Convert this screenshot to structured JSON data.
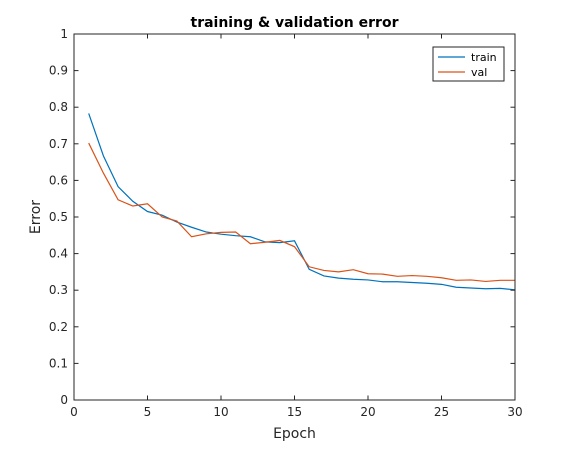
{
  "chart_data": {
    "type": "line",
    "title": "training & validation error",
    "xlabel": "Epoch",
    "ylabel": "Error",
    "xlim": [
      0,
      30
    ],
    "ylim": [
      0,
      1
    ],
    "xticks": [
      0,
      5,
      10,
      15,
      20,
      25,
      30
    ],
    "yticks": [
      0,
      0.1,
      0.2,
      0.3,
      0.4,
      0.5,
      0.6,
      0.7,
      0.8,
      0.9,
      1
    ],
    "xtick_labels": [
      "0",
      "5",
      "10",
      "15",
      "20",
      "25",
      "30"
    ],
    "ytick_labels": [
      "0",
      "0.1",
      "0.2",
      "0.3",
      "0.4",
      "0.5",
      "0.6",
      "0.7",
      "0.8",
      "0.9",
      "1"
    ],
    "grid": false,
    "legend_position": "top-right",
    "x": [
      1,
      2,
      3,
      4,
      5,
      6,
      7,
      8,
      9,
      10,
      11,
      12,
      13,
      14,
      15,
      16,
      17,
      18,
      19,
      20,
      21,
      22,
      23,
      24,
      25,
      26,
      27,
      28,
      29,
      30
    ],
    "series": [
      {
        "name": "train",
        "color": "#0072BD",
        "values": [
          0.783,
          0.667,
          0.583,
          0.543,
          0.515,
          0.505,
          0.486,
          0.472,
          0.459,
          0.453,
          0.449,
          0.446,
          0.432,
          0.43,
          0.435,
          0.357,
          0.339,
          0.333,
          0.33,
          0.328,
          0.323,
          0.323,
          0.321,
          0.319,
          0.316,
          0.308,
          0.306,
          0.304,
          0.305,
          0.301
        ]
      },
      {
        "name": "val",
        "color": "#D95319",
        "values": [
          0.702,
          0.62,
          0.547,
          0.53,
          0.536,
          0.5,
          0.489,
          0.446,
          0.454,
          0.458,
          0.459,
          0.427,
          0.431,
          0.436,
          0.419,
          0.364,
          0.354,
          0.35,
          0.356,
          0.345,
          0.344,
          0.338,
          0.34,
          0.338,
          0.334,
          0.327,
          0.328,
          0.324,
          0.327,
          0.327
        ]
      }
    ]
  }
}
